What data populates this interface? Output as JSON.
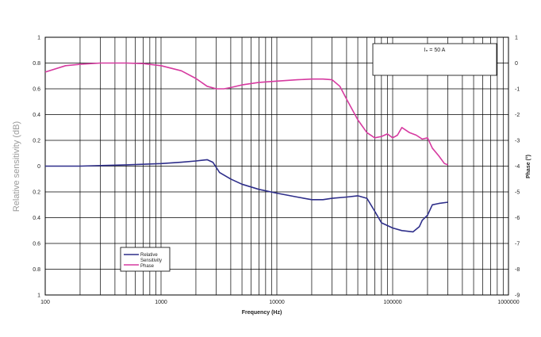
{
  "chart_data": {
    "type": "line",
    "xlabel": "Frequency (Hz)",
    "ylabel_left": "Relative sensitivity (dB)",
    "ylabel_right": "Phase (°)",
    "x_scale": "log",
    "xlim": [
      100,
      1000000
    ],
    "ylim_left": [
      -1,
      1
    ],
    "ylim_right": [
      -9,
      1
    ],
    "x_ticks": [
      "100",
      "1000",
      "10000",
      "100000",
      "1000000"
    ],
    "y_ticks_left": [
      "1",
      "0.8",
      "0.6",
      "0.4",
      "0.2",
      "0",
      "0.2",
      "0.4",
      "0.6",
      "0.8",
      "1"
    ],
    "y_ticks_right": [
      "1",
      "0",
      "-1",
      "-2",
      "-3",
      "-4",
      "-5",
      "-6",
      "-7",
      "-8",
      "-9"
    ],
    "annotation": "Iₙ = 50 A",
    "grid": true,
    "legend_position": "bottom-left",
    "legend": [
      "Relative",
      "Sensitivity",
      "Phase"
    ],
    "series": [
      {
        "name": "Relative Sensitivity",
        "axis": "left",
        "color": "#2e2e8a",
        "x": [
          100,
          200,
          500,
          1000,
          1500,
          2000,
          2500,
          2800,
          3200,
          4000,
          5000,
          7000,
          10000,
          15000,
          20000,
          25000,
          30000,
          40000,
          50000,
          60000,
          70000,
          80000,
          100000,
          120000,
          150000,
          170000,
          180000,
          200000,
          220000,
          250000,
          300000
        ],
        "values": [
          0.0,
          0.0,
          0.01,
          0.02,
          0.03,
          0.04,
          0.05,
          0.03,
          -0.05,
          -0.1,
          -0.14,
          -0.18,
          -0.21,
          -0.24,
          -0.26,
          -0.26,
          -0.25,
          -0.24,
          -0.23,
          -0.25,
          -0.35,
          -0.44,
          -0.48,
          -0.5,
          -0.51,
          -0.47,
          -0.42,
          -0.38,
          -0.3,
          -0.29,
          -0.28
        ]
      },
      {
        "name": "Phase",
        "axis": "right",
        "color": "#d63aa0",
        "x": [
          100,
          150,
          200,
          300,
          500,
          700,
          1000,
          1500,
          2000,
          2500,
          3000,
          3500,
          4000,
          5000,
          7000,
          10000,
          15000,
          20000,
          25000,
          30000,
          35000,
          40000,
          50000,
          60000,
          70000,
          80000,
          90000,
          100000,
          110000,
          120000,
          140000,
          160000,
          180000,
          200000,
          220000,
          250000,
          280000,
          300000
        ],
        "values": [
          -0.35,
          -0.1,
          -0.05,
          0.0,
          0.0,
          -0.02,
          -0.1,
          -0.3,
          -0.6,
          -0.9,
          -1.0,
          -1.0,
          -0.95,
          -0.85,
          -0.75,
          -0.7,
          -0.65,
          -0.62,
          -0.62,
          -0.65,
          -0.9,
          -1.4,
          -2.2,
          -2.7,
          -2.9,
          -2.85,
          -2.75,
          -2.9,
          -2.8,
          -2.5,
          -2.7,
          -2.8,
          -2.95,
          -2.9,
          -3.3,
          -3.6,
          -3.9,
          -3.95
        ]
      }
    ]
  }
}
